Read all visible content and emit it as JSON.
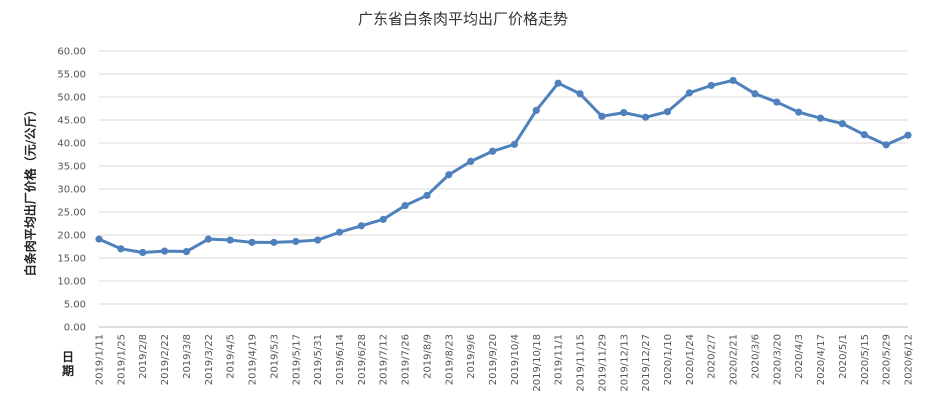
{
  "chart_data": {
    "type": "line",
    "title": "广东省白条肉平均出厂价格走势",
    "xlabel": "日期",
    "ylabel": "白条肉平均出厂价格（元/公斤）",
    "ylim": [
      0,
      60
    ],
    "yticks": [
      "0.00",
      "5.00",
      "10.00",
      "15.00",
      "20.00",
      "25.00",
      "30.00",
      "35.00",
      "40.00",
      "45.00",
      "50.00",
      "55.00",
      "60.00"
    ],
    "grid": true,
    "legend": "none",
    "categories": [
      "2019/1/11",
      "2019/1/25",
      "2019/2/8",
      "2019/2/22",
      "2019/3/8",
      "2019/3/22",
      "2019/4/5",
      "2019/4/19",
      "2019/5/3",
      "2019/5/17",
      "2019/5/31",
      "2019/6/14",
      "2019/6/28",
      "2019/7/12",
      "2019/7/26",
      "2019/8/9",
      "2019/8/23",
      "2019/9/6",
      "2019/9/20",
      "2019/10/4",
      "2019/10/18",
      "2019/11/1",
      "2019/11/15",
      "2019/11/29",
      "2019/12/13",
      "2019/12/27",
      "2020/1/10",
      "2020/1/24",
      "2020/2/7",
      "2020/2/21",
      "2020/3/6",
      "2020/3/20",
      "2020/4/3",
      "2020/4/17",
      "2020/5/1",
      "2020/5/15",
      "2020/5/29",
      "2020/6/12"
    ],
    "values": [
      19.1,
      17.0,
      16.2,
      16.5,
      16.4,
      19.1,
      18.9,
      18.4,
      18.4,
      18.6,
      18.9,
      20.6,
      22.0,
      23.4,
      26.4,
      28.6,
      33.1,
      36.0,
      38.2,
      39.7,
      47.1,
      53.0,
      50.7,
      45.8,
      46.6,
      45.6,
      46.8,
      50.9,
      52.5,
      53.6,
      50.7,
      48.9,
      46.7,
      45.4,
      44.2,
      41.8,
      39.6,
      41.7
    ],
    "line_color": "#4f81bd"
  }
}
